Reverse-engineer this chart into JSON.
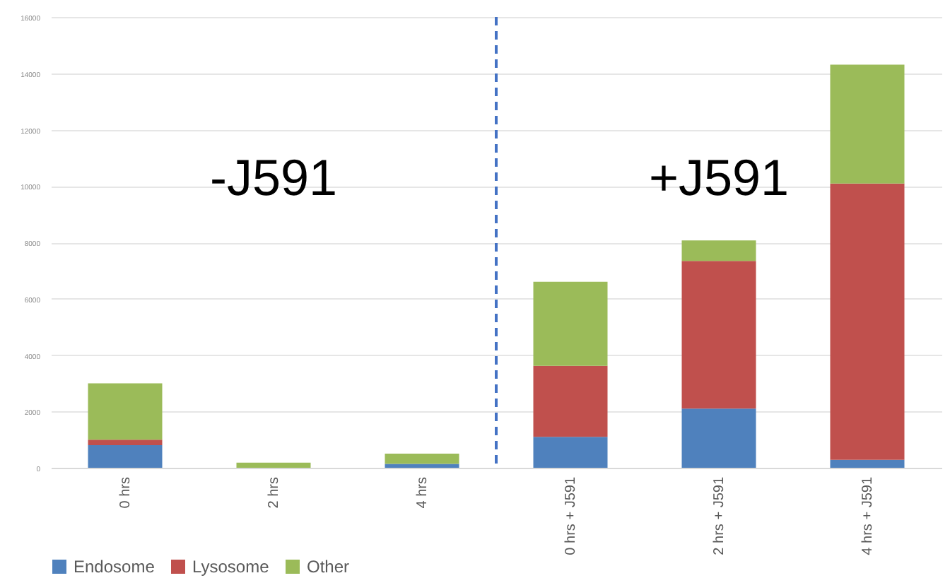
{
  "chart_data": {
    "type": "bar",
    "stacked": true,
    "categories": [
      "0 hrs",
      "2 hrs",
      "4 hrs",
      "0 hrs + J591",
      "2 hrs + J591",
      "4 hrs + J591"
    ],
    "series": [
      {
        "name": "Endosome",
        "color": "#4f81bd",
        "values": [
          800,
          0,
          140,
          1100,
          2100,
          280
        ]
      },
      {
        "name": "Lysosome",
        "color": "#c0504d",
        "values": [
          200,
          0,
          0,
          2520,
          5240,
          9810
        ]
      },
      {
        "name": "Other",
        "color": "#9bbb59",
        "values": [
          2000,
          180,
          360,
          2980,
          730,
          4220
        ]
      }
    ],
    "ylim": [
      0,
      16000
    ],
    "yticks": [
      0,
      2000,
      4000,
      6000,
      8000,
      10000,
      12000,
      14000,
      16000
    ],
    "grid": "y",
    "legend": "bottom",
    "ref_lines": [
      {
        "axis": "x",
        "value": "0 hrs + J591",
        "color": "#4472c4",
        "line_style": "dashed"
      }
    ],
    "annotations": [
      "-J591",
      "+J591"
    ]
  }
}
